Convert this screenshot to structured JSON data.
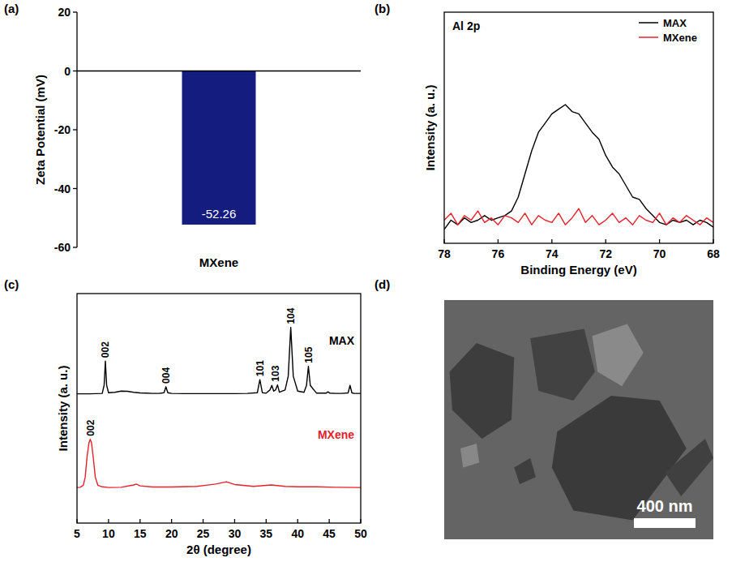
{
  "chart_data": [
    {
      "type": "bar",
      "panel_label": "(a)",
      "categories": [
        "MXene"
      ],
      "values": [
        -52.26
      ],
      "color": "#141c80",
      "ylim": [
        -60,
        20
      ],
      "yticks": [
        -60,
        -40,
        -20,
        0,
        20
      ],
      "y_label": "Zeta Potential (mV)",
      "data_labels": true,
      "grid": false
    },
    {
      "type": "line",
      "panel_label": "(b)",
      "annotations": [
        "Al 2p"
      ],
      "x": [
        78,
        77.75,
        77.5,
        77.25,
        77,
        76.75,
        76.5,
        76.25,
        76,
        75.75,
        75.5,
        75.25,
        75,
        74.75,
        74.5,
        74.25,
        74,
        73.75,
        73.5,
        73.25,
        73,
        72.75,
        72.5,
        72.25,
        72,
        71.75,
        71.5,
        71.25,
        71,
        70.75,
        70.5,
        70.25,
        70,
        69.75,
        69.5,
        69.25,
        69,
        68.75,
        68.5,
        68.25,
        68
      ],
      "series": [
        {
          "name": "MAX",
          "color": "#000000",
          "values": [
            0.06,
            0.1,
            0.08,
            0.11,
            0.09,
            0.1,
            0.12,
            0.1,
            0.11,
            0.12,
            0.14,
            0.2,
            0.3,
            0.4,
            0.48,
            0.52,
            0.56,
            0.58,
            0.6,
            0.57,
            0.56,
            0.52,
            0.48,
            0.45,
            0.38,
            0.33,
            0.3,
            0.25,
            0.2,
            0.19,
            0.15,
            0.12,
            0.09,
            0.08,
            0.1,
            0.09,
            0.1,
            0.08,
            0.1,
            0.09,
            0.07
          ]
        },
        {
          "name": "MXene",
          "color": "#e8202a",
          "values": [
            0.1,
            0.13,
            0.08,
            0.12,
            0.1,
            0.14,
            0.09,
            0.11,
            0.08,
            0.12,
            0.11,
            0.09,
            0.13,
            0.08,
            0.12,
            0.1,
            0.09,
            0.13,
            0.08,
            0.11,
            0.15,
            0.09,
            0.12,
            0.08,
            0.1,
            0.13,
            0.09,
            0.11,
            0.08,
            0.12,
            0.1,
            0.09,
            0.13,
            0.08,
            0.11,
            0.09,
            0.12,
            0.1,
            0.08,
            0.11,
            0.09
          ]
        }
      ],
      "xlim": [
        78,
        68
      ],
      "xticks": [
        78,
        76,
        74,
        72,
        70,
        68
      ],
      "ylim": [
        0,
        1
      ],
      "yticks": [],
      "x_label": "Binding Energy (eV)",
      "y_label": "Intensity (a. u.)",
      "legend": "upper right",
      "tick_labels": "x",
      "grid": false
    },
    {
      "type": "line",
      "panel_label": "(c)",
      "series": [
        {
          "name": "MAX",
          "color": "#000000",
          "x": [
            5,
            6,
            7,
            8,
            9,
            9.3,
            9.5,
            9.7,
            10,
            11,
            12,
            13,
            14,
            15,
            16,
            17,
            18,
            18.8,
            19.1,
            19.4,
            20,
            22,
            24,
            26,
            28,
            30,
            32,
            33.6,
            34,
            34.4,
            35,
            35.6,
            35.9,
            36.2,
            36.5,
            36.8,
            37.1,
            38,
            38.5,
            38.9,
            39.3,
            40,
            41,
            41.4,
            41.7,
            42,
            43,
            44.5,
            44.8,
            45.1,
            46,
            47,
            48,
            48.3,
            48.6,
            49,
            50
          ],
          "values": [
            0.563,
            0.563,
            0.563,
            0.564,
            0.565,
            0.6,
            0.706,
            0.6,
            0.568,
            0.57,
            0.575,
            0.574,
            0.57,
            0.567,
            0.566,
            0.565,
            0.565,
            0.568,
            0.594,
            0.568,
            0.565,
            0.564,
            0.564,
            0.564,
            0.564,
            0.564,
            0.565,
            0.568,
            0.625,
            0.568,
            0.566,
            0.58,
            0.6,
            0.575,
            0.58,
            0.602,
            0.57,
            0.58,
            0.64,
            0.853,
            0.64,
            0.575,
            0.57,
            0.6,
            0.683,
            0.6,
            0.566,
            0.566,
            0.572,
            0.566,
            0.565,
            0.565,
            0.567,
            0.6,
            0.567,
            0.565,
            0.565
          ],
          "peak_labels": [
            {
              "x": 9.5,
              "text": "002"
            },
            {
              "x": 19.1,
              "text": "004"
            },
            {
              "x": 34,
              "text": "101"
            },
            {
              "x": 36.5,
              "text": "103"
            },
            {
              "x": 38.9,
              "text": "104"
            },
            {
              "x": 41.7,
              "text": "105"
            }
          ]
        },
        {
          "name": "MXene",
          "color": "#e8202a",
          "x": [
            5,
            5.5,
            6,
            6.3,
            6.6,
            6.9,
            7.1,
            7.3,
            7.6,
            7.9,
            8.3,
            9,
            10,
            12,
            14,
            14.4,
            15,
            17,
            20,
            24,
            27,
            28.7,
            30,
            33,
            35.8,
            38,
            40,
            43,
            46,
            50
          ],
          "values": [
            0.155,
            0.156,
            0.165,
            0.2,
            0.29,
            0.35,
            0.365,
            0.35,
            0.28,
            0.2,
            0.165,
            0.158,
            0.155,
            0.156,
            0.166,
            0.17,
            0.162,
            0.157,
            0.157,
            0.16,
            0.17,
            0.18,
            0.168,
            0.16,
            0.166,
            0.16,
            0.158,
            0.158,
            0.156,
            0.155
          ],
          "peak_labels": [
            {
              "x": 7.1,
              "text": "002"
            }
          ]
        }
      ],
      "xlim": [
        5,
        50
      ],
      "xticks": [
        5,
        10,
        15,
        20,
        25,
        30,
        35,
        40,
        45,
        50
      ],
      "ylim": [
        0,
        1
      ],
      "yticks": [],
      "x_label": "2θ (degree)",
      "y_label": "Intensity (a. u.)",
      "tick_labels": "x",
      "grid": false
    },
    {
      "type": "image",
      "panel_label": "(d)",
      "annotations": [
        "400 nm"
      ]
    }
  ]
}
